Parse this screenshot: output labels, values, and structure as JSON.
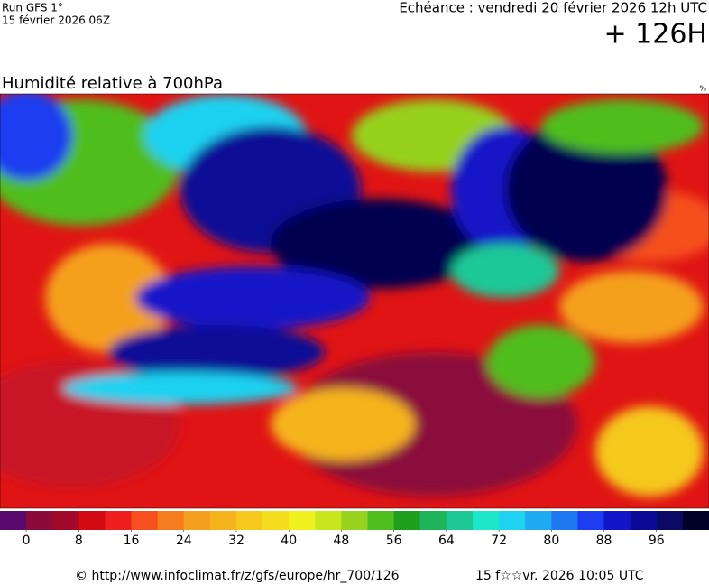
{
  "header": {
    "run": "Run GFS 1°",
    "run_date": "15 février 2026 06Z",
    "valid_time": "Echéance : vendredi 20 février 2026 12h UTC",
    "lead_time": "+ 126H"
  },
  "map": {
    "title": "Humidité relative à 700hPa",
    "unit": "%"
  },
  "colorbar": {
    "range": [
      -4,
      104
    ],
    "ticks": [
      0,
      8,
      16,
      24,
      32,
      40,
      48,
      56,
      64,
      72,
      80,
      88,
      96
    ],
    "colors": [
      "#5a0a6e",
      "#8b0a3a",
      "#a00a28",
      "#d20a14",
      "#f01e1e",
      "#f5501e",
      "#f57d1e",
      "#f5a01e",
      "#f5b41e",
      "#f5c81e",
      "#f5dc1e",
      "#f0f01e",
      "#c8e61e",
      "#96d21e",
      "#50be1e",
      "#1ea01e",
      "#1eb45a",
      "#1ec896",
      "#1ee6c8",
      "#1ed2f0",
      "#1eaaf0",
      "#1e78f0",
      "#1e3cf0",
      "#1414c8",
      "#0a0a96",
      "#0a0a64",
      "#000028"
    ]
  },
  "footer": {
    "url": "© http://www.infoclimat.fr/z/gfs/europe/hr_700/126",
    "generated": "15 f☆☆vr. 2026 10:05 UTC"
  }
}
